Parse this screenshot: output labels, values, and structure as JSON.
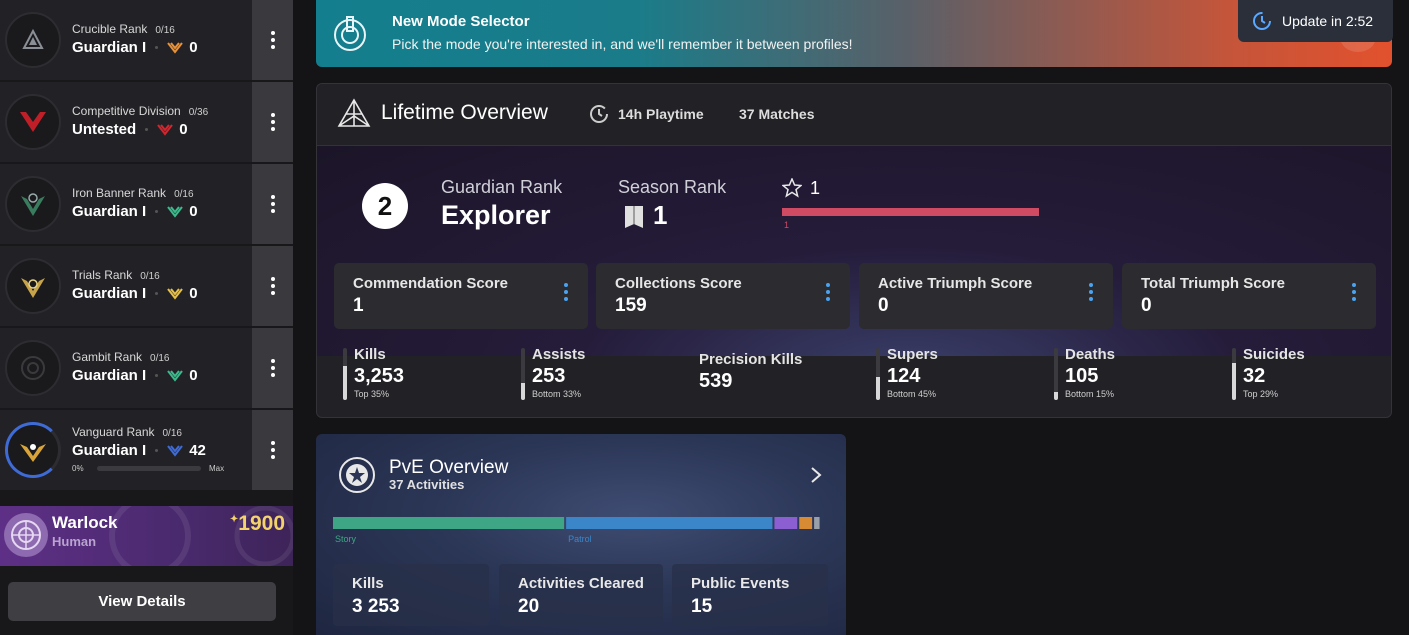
{
  "sidebar": {
    "ranks": [
      {
        "title": "Crucible Rank",
        "count": "0/16",
        "rank": "Guardian I",
        "points": "0",
        "accent": "#e8913a",
        "emblem_color": "#8a8f96"
      },
      {
        "title": "Competitive Division",
        "count": "0/36",
        "rank": "Untested",
        "points": "0",
        "accent": "#d2262f",
        "emblem_color": "#c01f28"
      },
      {
        "title": "Iron Banner Rank",
        "count": "0/16",
        "rank": "Guardian I",
        "points": "0",
        "accent": "#3dba8c",
        "emblem_color": "#3a7d5e"
      },
      {
        "title": "Trials Rank",
        "count": "0/16",
        "rank": "Guardian I",
        "points": "0",
        "accent": "#e5c04a",
        "emblem_color": "#c7a34a"
      },
      {
        "title": "Gambit Rank",
        "count": "0/16",
        "rank": "Guardian I",
        "points": "0",
        "accent": "#3dba8c",
        "emblem_color": "#3a3a3e"
      },
      {
        "title": "Vanguard Rank",
        "count": "0/16",
        "rank": "Guardian I",
        "points": "42",
        "accent": "#3f6bd6",
        "emblem_color": "#d9a53a",
        "progress_start": "0%",
        "progress_end": "Max",
        "progress": 0
      }
    ],
    "character": {
      "class": "Warlock",
      "race": "Human",
      "power": "1900",
      "power_prefix": "✦"
    },
    "view_details": "View Details"
  },
  "banner": {
    "title": "New Mode Selector",
    "text": "Pick the mode you're interested in, and we'll remember it between profiles!"
  },
  "update": {
    "label": "Update in 2:52"
  },
  "lifetime": {
    "title": "Lifetime Overview",
    "playtime": "14h Playtime",
    "matches": "37 Matches",
    "guardian_rank_number": "2",
    "guardian_rank_label": "Guardian Rank",
    "guardian_rank_value": "Explorer",
    "season_rank_label": "Season Rank",
    "season_rank_value": "1",
    "reward_level": "1",
    "reward_bar_label": "1",
    "reward_bar_color": "#cf4a63",
    "scores": [
      {
        "label": "Commendation Score",
        "value": "1"
      },
      {
        "label": "Collections Score",
        "value": "159"
      },
      {
        "label": "Active Triumph Score",
        "value": "0"
      },
      {
        "label": "Total Triumph Score",
        "value": "0"
      }
    ],
    "stats": [
      {
        "label": "Kills",
        "value": "3,253",
        "sub": "Top 35%",
        "fill": 0.65
      },
      {
        "label": "Assists",
        "value": "253",
        "sub": "Bottom 33%",
        "fill": 0.33
      },
      {
        "label": "Precision Kills",
        "value": "539",
        "sub": "",
        "fill": null
      },
      {
        "label": "Supers",
        "value": "124",
        "sub": "Bottom 45%",
        "fill": 0.45
      },
      {
        "label": "Deaths",
        "value": "105",
        "sub": "Bottom 15%",
        "fill": 0.15
      },
      {
        "label": "Suicides",
        "value": "32",
        "sub": "Top 29%",
        "fill": 0.71
      }
    ]
  },
  "pve": {
    "title": "PvE Overview",
    "subtitle": "37 Activities",
    "segments": [
      {
        "label": "Story",
        "share": 0.47,
        "color": "#3ea684"
      },
      {
        "label": "Patrol",
        "share": 0.42,
        "color": "#3a86c8"
      },
      {
        "label": "",
        "share": 0.05,
        "color": "#8b5fd1"
      },
      {
        "label": "",
        "share": 0.03,
        "color": "#d98b34"
      },
      {
        "label": "",
        "share": 0.015,
        "color": "#9aa0aa"
      }
    ],
    "stats": [
      {
        "label": "Kills",
        "value": "3 253"
      },
      {
        "label": "Activities Cleared",
        "value": "20"
      },
      {
        "label": "Public Events",
        "value": "15"
      }
    ]
  }
}
